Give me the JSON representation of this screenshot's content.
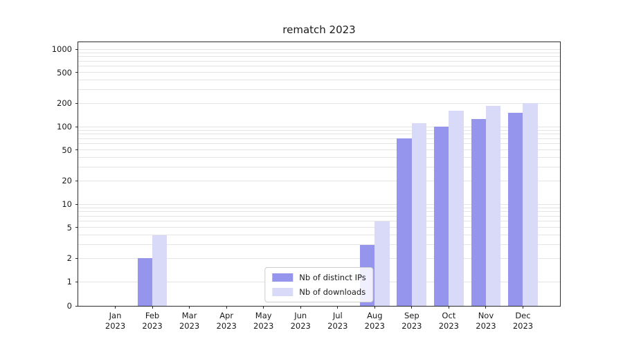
{
  "chart_data": {
    "type": "bar",
    "title": "rematch 2023",
    "categories": [
      "Jan",
      "Feb",
      "Mar",
      "Apr",
      "May",
      "Jun",
      "Jul",
      "Aug",
      "Sep",
      "Oct",
      "Nov",
      "Dec"
    ],
    "year_label": "2023",
    "series": [
      {
        "name": "Nb of distinct IPs",
        "color": "#9595ee",
        "values": [
          0,
          2,
          0,
          0,
          0,
          0,
          0,
          3,
          70,
          100,
          125,
          150
        ]
      },
      {
        "name": "Nb of downloads",
        "color": "#d9d9f8",
        "values": [
          0,
          4,
          0,
          0,
          0,
          0,
          0,
          6,
          110,
          160,
          185,
          200
        ]
      }
    ],
    "yticks": [
      0,
      1,
      2,
      5,
      10,
      20,
      50,
      100,
      200,
      500,
      1000
    ],
    "yscale": "symlog",
    "ylim": [
      0,
      1300
    ],
    "xlabel": "",
    "ylabel": "",
    "grid": "horizontal minor log gridlines",
    "legend": {
      "position": "lower center",
      "entries": [
        "Nb of distinct IPs",
        "Nb of downloads"
      ]
    }
  }
}
